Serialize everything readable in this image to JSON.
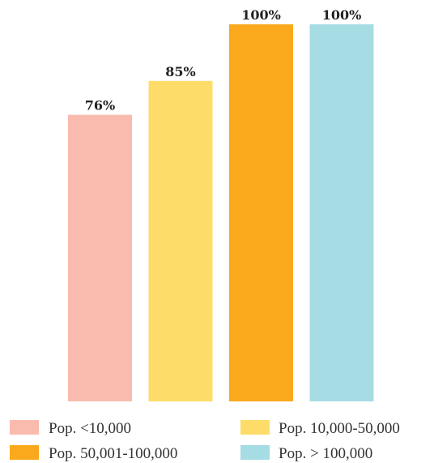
{
  "chart_data": {
    "type": "bar",
    "categories": [
      "Pop. <10,000",
      "Pop. 10,000-50,000",
      "Pop. 50,001-100,000",
      "Pop. > 100,000"
    ],
    "values": [
      76,
      85,
      100,
      100
    ],
    "value_labels": [
      "76%",
      "85%",
      "100%",
      "100%"
    ],
    "colors": [
      "#F9BBAE",
      "#FEDC69",
      "#FAA91C",
      "#A6DCE3"
    ],
    "ylim": [
      0,
      100
    ],
    "grid": false,
    "legend_position": "bottom"
  },
  "legend": {
    "items": [
      {
        "label": "Pop. <10,000",
        "color": "#F9BBAE"
      },
      {
        "label": "Pop. 10,000-50,000",
        "color": "#FEDC69"
      },
      {
        "label": "Pop. 50,001-100,000",
        "color": "#FAA91C"
      },
      {
        "label": "Pop. > 100,000",
        "color": "#A6DCE3"
      }
    ]
  }
}
